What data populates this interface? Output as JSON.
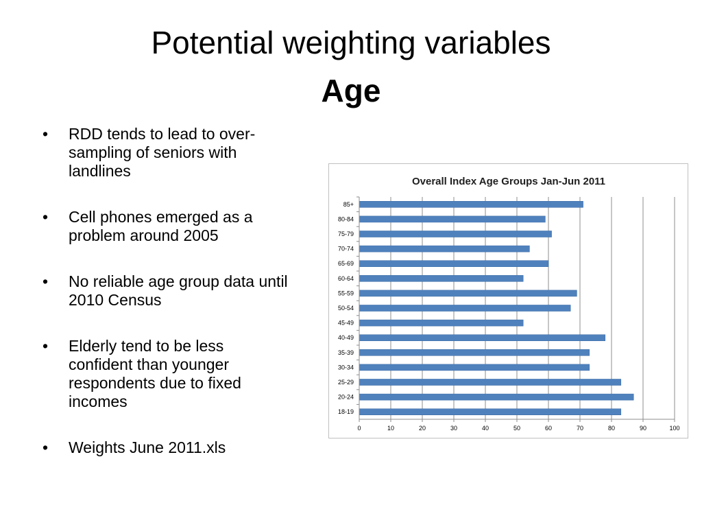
{
  "slide": {
    "title": "Potential weighting variables",
    "subtitle": "Age",
    "bullet_symbol": "•",
    "bullets": [
      "RDD tends to lead to over-sampling of seniors with landlines",
      "Cell phones emerged as a problem around 2005",
      "No reliable age group data until 2010 Census",
      "Elderly tend to be less confident than younger respondents due to fixed incomes",
      "Weights June 2011.xls"
    ]
  },
  "chart_data": {
    "type": "bar",
    "orientation": "horizontal",
    "title": "Overall Index Age Groups Jan-Jun 2011",
    "xlabel": "",
    "ylabel": "",
    "categories": [
      "85+",
      "80-84",
      "75-79",
      "70-74",
      "65-69",
      "60-64",
      "55-59",
      "50-54",
      "45-49",
      "40-49",
      "35-39",
      "30-34",
      "25-29",
      "20-24",
      "18-19"
    ],
    "values": [
      71,
      59,
      61,
      54,
      60,
      52,
      69,
      67,
      52,
      78,
      73,
      73,
      83,
      87,
      83
    ],
    "xlim": [
      0,
      100
    ],
    "xticks": [
      0,
      10,
      20,
      30,
      40,
      50,
      60,
      70,
      80,
      90,
      100
    ],
    "grid": "vertical",
    "legend": "none",
    "bar_color": "#4f81bd",
    "grid_color": "#8c8c8c"
  }
}
